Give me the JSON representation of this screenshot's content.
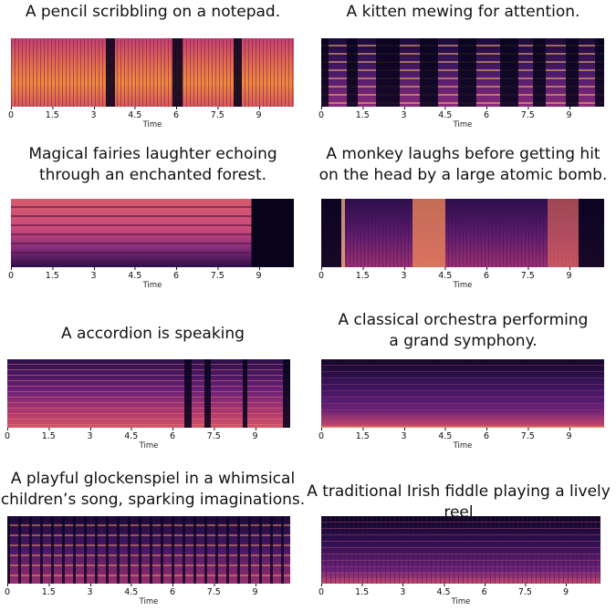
{
  "xlabel": "Time",
  "ticks": [
    "0",
    "1.5",
    "3",
    "4.5",
    "6",
    "7.5",
    "9"
  ],
  "panels": [
    {
      "id": "pencil",
      "caption": "A pencil scribbling on a notepad."
    },
    {
      "id": "kitten",
      "caption": "A kitten mewing for attention."
    },
    {
      "id": "fairies",
      "caption": "Magical fairies  laughter echoing\nthrough an enchanted forest."
    },
    {
      "id": "monkey",
      "caption": "A monkey laughs before getting hit\non the head by a large atomic bomb."
    },
    {
      "id": "accordion",
      "caption": "A accordion is speaking"
    },
    {
      "id": "orchestra",
      "caption": "A classical orchestra performing\na grand symphony."
    },
    {
      "id": "glockenspiel",
      "caption": "A playful glockenspiel in a whimsical\nchildren’s song, sparking imaginations."
    },
    {
      "id": "fiddle",
      "caption": "A traditional Irish fiddle playing a lively reel"
    }
  ],
  "colors": {
    "background": "#0b0620",
    "accent": "#f7a34a",
    "mid": "#b1357a"
  }
}
